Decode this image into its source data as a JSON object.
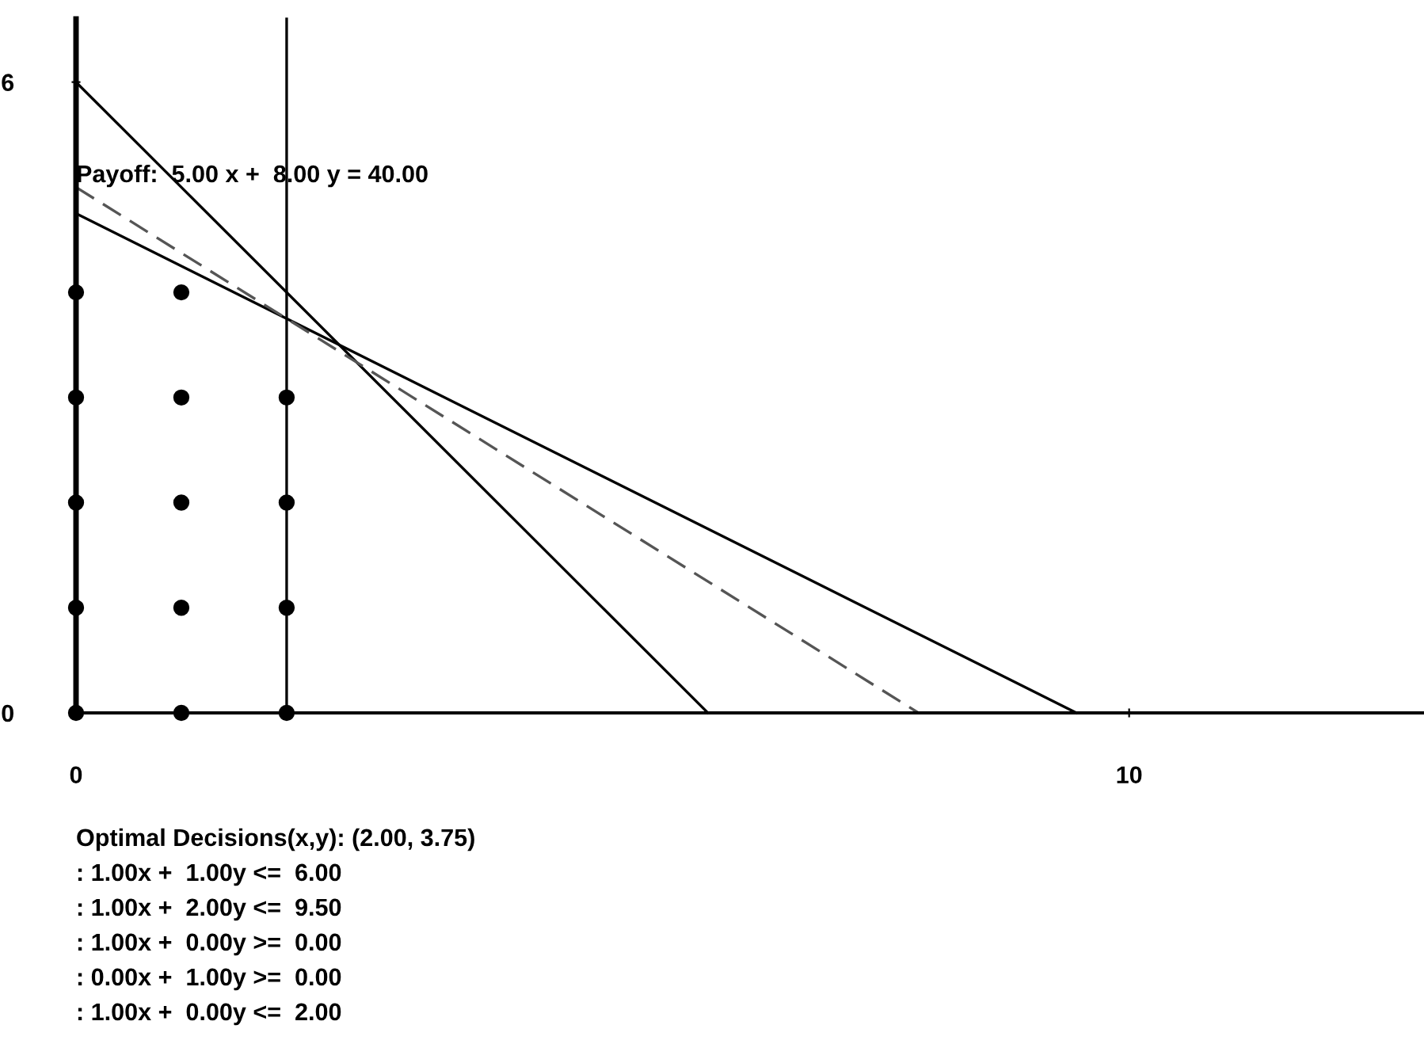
{
  "chart_data": {
    "type": "line",
    "xlim": [
      0,
      12.8
    ],
    "ylim": [
      0,
      6.6
    ],
    "xticks": [
      0,
      10
    ],
    "yticks": [
      0,
      6
    ],
    "grid": false,
    "legend": false,
    "series": [
      {
        "color": "#000000",
        "line_style": "solid",
        "x": [
          0,
          6
        ],
        "values": [
          6,
          0
        ]
      },
      {
        "color": "#000000",
        "line_style": "solid",
        "x": [
          0,
          9.5
        ],
        "values": [
          4.75,
          0
        ]
      },
      {
        "color": "#000000",
        "line_style": "solid",
        "x": [
          2,
          2
        ],
        "values": [
          0,
          6.6
        ]
      },
      {
        "color": "#555555",
        "line_style": "dashed",
        "x": [
          0,
          8
        ],
        "values": [
          5,
          0
        ]
      },
      {
        "type": "scatter",
        "color": "#000000",
        "marker": "circle",
        "x": [
          0,
          0,
          0,
          0,
          0,
          1,
          1,
          1,
          1,
          1,
          2,
          2,
          2,
          2
        ],
        "values": [
          0,
          1,
          2,
          3,
          4,
          0,
          1,
          2,
          3,
          4,
          0,
          1,
          2,
          3
        ]
      }
    ],
    "annotations": [
      {
        "text": "Payoff:  5.00 x +  8.00 y = 40.00",
        "x": 0,
        "y": 5
      },
      "Optimal Decisions(x,y): (2.00, 3.75)",
      ": 1.00x +  1.00y <=  6.00",
      ": 1.00x +  2.00y <=  9.50",
      ": 1.00x +  0.00y >=  0.00",
      ": 0.00x +  1.00y >=  0.00",
      ": 1.00x +  0.00y <=  2.00"
    ]
  }
}
